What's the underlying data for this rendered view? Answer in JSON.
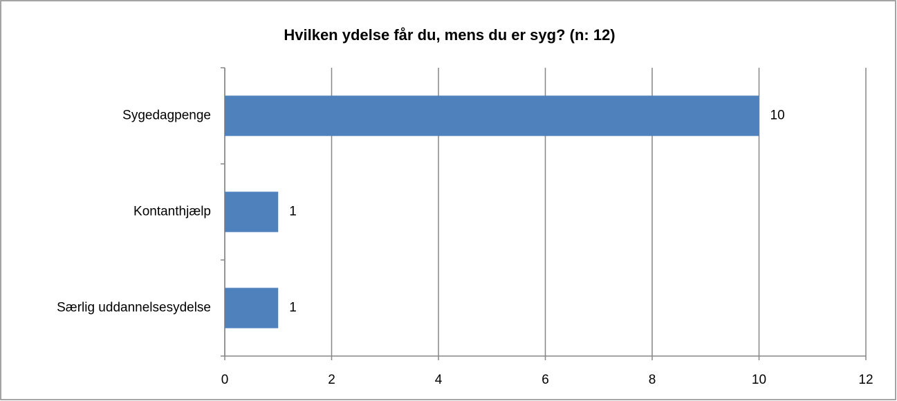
{
  "chart_data": {
    "type": "hbar",
    "title": "Hvilken ydelse får du, mens du er syg? (n: 12)",
    "categories": [
      "Sygedagpenge",
      "Kontanthjælp",
      "Særlig uddannelsesydelse"
    ],
    "values": [
      10,
      1,
      1
    ],
    "color": "#4f81bd",
    "xlim": [
      0,
      12
    ],
    "xticks": [
      0,
      2,
      4,
      6,
      8,
      10,
      12
    ],
    "grid": true
  }
}
